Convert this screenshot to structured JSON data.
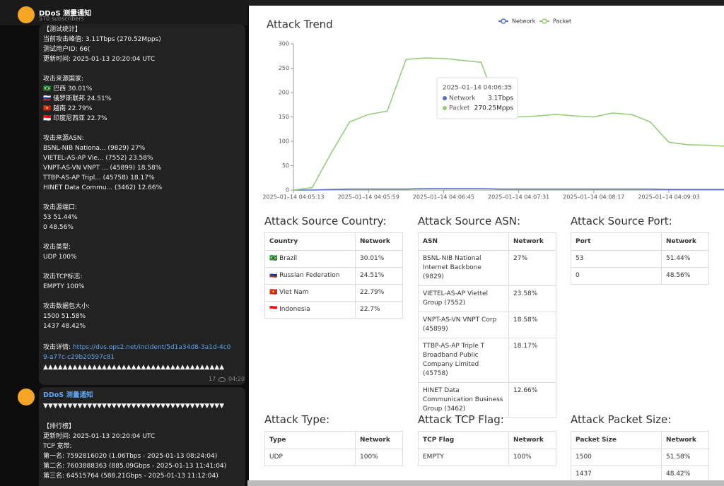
{
  "telegram": {
    "channel": "DDoS 测量通知",
    "subscribers": "570 subscribers",
    "message1": {
      "blocks": [
        [
          "【测试统计】",
          "当前攻击峰值: 3.11Tbps (270.52Mpps)",
          "测试用户ID: 66(",
          "更新时间: 2025-01-13 20:20:04 UTC"
        ],
        [
          "攻击来源国家:",
          "🇧🇷 巴西 30.01%",
          "🇷🇺 俄罗斯联邦 24.51%",
          "🇻🇳 越南 22.79%",
          "🇮🇩 印度尼西亚 22.7%"
        ],
        [
          "攻击来源ASN:",
          "BSNL-NIB Nationa... (9829) 27%",
          "VIETEL-AS-AP Vie... (7552) 23.58%",
          "VNPT-AS-VN VNPT ... (45899) 18.58%",
          "TTBP-AS-AP Tripl... (45758) 18.17%",
          "HINET Data Commu... (3462) 12.66%"
        ],
        [
          "攻击源端口:",
          "53 51.44%",
          "0 48.56%"
        ],
        [
          "攻击类型:",
          "UDP 100%"
        ],
        [
          "攻击TCP标志:",
          "EMPTY 100%"
        ],
        [
          "攻击数据包大小:",
          "1500 51.58%",
          "1437 48.42%"
        ]
      ],
      "detail_label": "攻击详情: ",
      "detail_link": "https://dvs.ops2.net/incident/5d1a34d8-3a1d-4c09-a77c-c29b20597c81",
      "arrows": "▲▲▲▲▲▲▲▲▲▲▲▲▲▲▲▲▲▲▲▲▲▲▲▲▲▲▲▲▲▲▲▲▲▲▲▲▲",
      "views": "17",
      "time": "04:20"
    },
    "message2": {
      "sender": "DDoS 测量通知",
      "arrows": "▼▼▼▼▼▼▼▼▼▼▼▼▼▼▼▼▼▼▼▼▼▼▼▼▼▼▼▼▼▼▼▼▼▼▼▼▼",
      "lines": [
        "【排行榜】",
        "更新时间: 2025-01-13 20:20:04 UTC",
        "TCP 宽带:",
        "第一名: 7592816020 (1.06Tbps - 2025-01-13 08:24:04)",
        "第二名: 7603888363 (885.09Gbps - 2025-01-13 11:41:04)",
        "第三名: 64515764 (588.21Gbps - 2025-01-13 11:12:04)"
      ]
    }
  },
  "chart_data": {
    "type": "line",
    "title": "Attack Trend",
    "categories": [
      "2025–01–14 04:05:13",
      null,
      null,
      null,
      "2025–01–14 04:05:59",
      null,
      null,
      null,
      "2025–01–14 04:06:45",
      null,
      null,
      null,
      "2025–01–14 04:07:31",
      null,
      null,
      null,
      "2025–01–14 04:08:17",
      null,
      null,
      null,
      "2025–01–14 04:09:03",
      null,
      null,
      null
    ],
    "series": [
      {
        "name": "Network",
        "color": "#5470c6",
        "values": [
          0,
          0,
          1,
          2,
          2,
          2,
          2,
          3,
          3,
          3,
          3,
          2,
          2,
          2,
          2,
          2,
          2,
          2,
          2,
          2,
          1,
          1,
          1,
          1
        ]
      },
      {
        "name": "Packet",
        "color": "#91cc75",
        "values": [
          0,
          5,
          75,
          140,
          155,
          162,
          268,
          271,
          270,
          266,
          262,
          158,
          150,
          152,
          155,
          152,
          150,
          158,
          155,
          140,
          98,
          93,
          92,
          90
        ]
      }
    ],
    "ylim": [
      0,
      300
    ],
    "yticks": [
      0,
      50,
      100,
      150,
      200,
      250,
      300
    ],
    "grid": false,
    "tooltip": {
      "title": "2025–01–14 04:06:35",
      "values": [
        "3.1Tbps",
        "270.25Mpps"
      ]
    }
  },
  "dashboard": {
    "sections": [
      {
        "title": "Attack Source Country:",
        "table": {
          "header": [
            "Country",
            "Network"
          ],
          "rows": [
            [
              "🇧🇷 Brazil",
              "30.01%"
            ],
            [
              "🇷🇺 Russian Federation",
              "24.51%"
            ],
            [
              "🇻🇳 Viet Nam",
              "22.79%"
            ],
            [
              "🇮🇩 Indonesia",
              "22.7%"
            ]
          ]
        }
      },
      {
        "title": "Attack Source ASN:",
        "table": {
          "header": [
            "ASN",
            "Network"
          ],
          "rows": [
            [
              "BSNL-NIB National Internet Backbone (9829)",
              "27%"
            ],
            [
              "VIETEL-AS-AP Viettel Group (7552)",
              "23.58%"
            ],
            [
              "VNPT-AS-VN VNPT Corp (45899)",
              "18.58%"
            ],
            [
              "TTBP-AS-AP Triple T Broadband Public Company Limited (45758)",
              "18.17%"
            ],
            [
              "HINET Data Communication Business Group (3462)",
              "12.66%"
            ]
          ]
        }
      },
      {
        "title": "Attack Source Port:",
        "table": {
          "header": [
            "Port",
            "Network"
          ],
          "rows": [
            [
              "53",
              "51.44%"
            ],
            [
              "0",
              "48.56%"
            ]
          ]
        }
      },
      {
        "title": "Attack Type:",
        "table": {
          "header": [
            "Type",
            "Network"
          ],
          "rows": [
            [
              "UDP",
              "100%"
            ]
          ]
        }
      },
      {
        "title": "Attack TCP Flag:",
        "table": {
          "header": [
            "TCP Flag",
            "Network"
          ],
          "rows": [
            [
              "EMPTY",
              "100%"
            ]
          ]
        }
      },
      {
        "title": "Attack Packet Size:",
        "table": {
          "header": [
            "Packet Size",
            "Network"
          ],
          "rows": [
            [
              "1500",
              "51.58%"
            ],
            [
              "1437",
              "48.42%"
            ]
          ]
        }
      }
    ]
  }
}
